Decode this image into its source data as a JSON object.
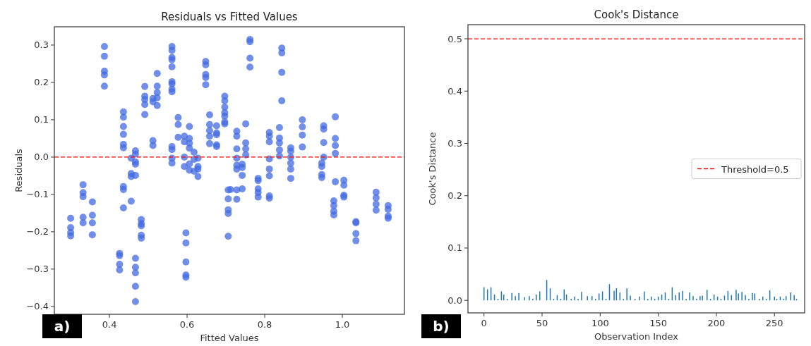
{
  "chart_data": [
    {
      "type": "scatter",
      "title": "Residuals vs Fitted Values",
      "xlabel": "Fitted Values",
      "ylabel": "Residuals",
      "marker": "circle",
      "annotations": [
        "a)"
      ],
      "xlim": [
        0.258,
        1.16
      ],
      "ylim": [
        -0.421,
        0.349
      ],
      "xticks": [
        0.4,
        0.6,
        0.8,
        {
          "value": 1,
          "label": "1.0"
        }
      ],
      "yticks": [
        {
          "value": -0.4,
          "label": "−0.4"
        },
        {
          "value": -0.3,
          "label": "−0.3"
        },
        {
          "value": -0.2,
          "label": "−0.2"
        },
        {
          "value": -0.1,
          "label": "−0.1"
        },
        {
          "value": 0,
          "label": "0.0"
        },
        0.1,
        0.2,
        0.3
      ],
      "ref_lines": [
        {
          "axis": "y",
          "value": 0,
          "color": "#ff0000",
          "line_style": "dashed"
        }
      ],
      "series": [
        {
          "color": "#4169e1",
          "x": [
            0.3,
            0.3,
            0.3,
            0.3,
            0.332,
            0.332,
            0.332,
            0.332,
            0.332,
            0.356,
            0.356,
            0.356,
            0.356,
            0.387,
            0.387,
            0.387,
            0.387,
            0.387,
            0.426,
            0.426,
            0.426,
            0.426,
            0.436,
            0.436,
            0.436,
            0.436,
            0.436,
            0.436,
            0.436,
            0.436,
            0.436,
            0.456,
            0.456,
            0.456,
            0.456,
            0.467,
            0.467,
            0.467,
            0.467,
            0.467,
            0.467,
            0.467,
            0.467,
            0.467,
            0.467,
            0.482,
            0.482,
            0.482,
            0.482,
            0.482,
            0.491,
            0.491,
            0.491,
            0.491,
            0.491,
            0.512,
            0.512,
            0.512,
            0.512,
            0.523,
            0.523,
            0.523,
            0.523,
            0.523,
            0.561,
            0.561,
            0.561,
            0.561,
            0.561,
            0.561,
            0.561,
            0.561,
            0.561,
            0.561,
            0.561,
            0.561,
            0.561,
            0.577,
            0.577,
            0.577,
            0.593,
            0.593,
            0.593,
            0.593,
            0.597,
            0.597,
            0.597,
            0.597,
            0.597,
            0.606,
            0.606,
            0.606,
            0.606,
            0.606,
            0.606,
            0.618,
            0.618,
            0.618,
            0.628,
            0.628,
            0.628,
            0.628,
            0.648,
            0.648,
            0.648,
            0.648,
            0.648,
            0.658,
            0.658,
            0.658,
            0.658,
            0.658,
            0.676,
            0.676,
            0.676,
            0.676,
            0.676,
            0.697,
            0.697,
            0.697,
            0.697,
            0.697,
            0.697,
            0.697,
            0.706,
            0.706,
            0.706,
            0.706,
            0.706,
            0.712,
            0.728,
            0.728,
            0.728,
            0.728,
            0.728,
            0.728,
            0.728,
            0.728,
            0.742,
            0.742,
            0.742,
            0.742,
            0.751,
            0.751,
            0.751,
            0.751,
            0.762,
            0.762,
            0.762,
            0.762,
            0.783,
            0.783,
            0.783,
            0.783,
            0.783,
            0.812,
            0.812,
            0.812,
            0.812,
            0.812,
            0.812,
            0.812,
            0.812,
            0.838,
            0.838,
            0.838,
            0.838,
            0.838,
            0.844,
            0.844,
            0.844,
            0.844,
            0.867,
            0.867,
            0.867,
            0.867,
            0.867,
            0.867,
            0.897,
            0.897,
            0.897,
            0.897,
            0.947,
            0.947,
            0.947,
            0.947,
            0.952,
            0.952,
            0.952,
            0.952,
            0.978,
            0.978,
            0.978,
            0.978,
            0.982,
            0.982,
            0.982,
            0.982,
            0.982,
            1.004,
            1.004,
            1.004,
            1.004,
            1.035,
            1.035,
            1.035,
            1.035,
            1.087,
            1.087,
            1.087,
            1.087,
            1.118,
            1.118,
            1.118,
            1.118
          ],
          "values": [
            -0.164,
            -0.189,
            -0.202,
            -0.211,
            -0.074,
            -0.095,
            -0.106,
            -0.161,
            -0.176,
            -0.12,
            -0.156,
            -0.176,
            -0.208,
            0.296,
            0.27,
            0.23,
            0.22,
            0.19,
            -0.258,
            -0.264,
            -0.287,
            -0.302,
            0.121,
            0.107,
            0.082,
            0.061,
            0.034,
            0.025,
            -0.079,
            -0.087,
            -0.136,
            -0.003,
            -0.044,
            -0.052,
            -0.118,
            0.017,
            0.008,
            -0.013,
            -0.019,
            -0.049,
            -0.271,
            -0.295,
            -0.31,
            -0.346,
            -0.387,
            -0.167,
            -0.178,
            -0.184,
            -0.209,
            -0.217,
            0.189,
            0.163,
            0.154,
            0.141,
            0.114,
            0.157,
            0.148,
            0.044,
            0.031,
            0.224,
            0.19,
            0.173,
            0.159,
            0.138,
            0.296,
            0.286,
            0.267,
            0.261,
            0.242,
            0.202,
            0.196,
            0.182,
            0.175,
            0.028,
            0.02,
            -0.003,
            -0.016,
            0.106,
            0.087,
            0.053,
            0.056,
            0.041,
            0.0,
            -0.025,
            -0.203,
            -0.23,
            -0.281,
            -0.316,
            -0.322,
            0.082,
            0.05,
            0.037,
            0.024,
            -0.018,
            -0.035,
            0.013,
            -0.006,
            -0.038,
            -0.003,
            -0.025,
            -0.032,
            -0.052,
            0.256,
            0.247,
            0.221,
            0.213,
            0.194,
            0.113,
            0.087,
            0.071,
            0.056,
            0.036,
            0.084,
            0.065,
            0.06,
            0.033,
            0.028,
            0.163,
            0.151,
            0.134,
            0.119,
            0.11,
            0.094,
            0.089,
            -0.088,
            -0.112,
            -0.141,
            -0.151,
            -0.212,
            -0.087,
            0.069,
            0.056,
            0.022,
            -0.003,
            -0.022,
            -0.032,
            -0.088,
            -0.113,
            -0.019,
            -0.028,
            -0.049,
            -0.085,
            0.089,
            0.038,
            0.022,
            0.006,
            0.315,
            0.309,
            0.265,
            0.241,
            -0.057,
            -0.063,
            -0.085,
            -0.095,
            -0.107,
            0.066,
            0.056,
            0.041,
            -0.005,
            -0.032,
            -0.05,
            -0.104,
            -0.11,
            0.079,
            0.051,
            0.038,
            0.019,
            0.003,
            0.292,
            0.279,
            0.227,
            0.151,
            0.025,
            0.016,
            0.0,
            -0.016,
            -0.032,
            -0.057,
            0.1,
            0.081,
            0.059,
            0.027,
            -0.016,
            -0.025,
            -0.047,
            -0.055,
            0.084,
            0.075,
            0.039,
            0.0,
            -0.117,
            -0.13,
            -0.145,
            -0.155,
            0.108,
            0.05,
            0.031,
            0.01,
            -0.066,
            -0.062,
            -0.075,
            -0.102,
            -0.107,
            -0.173,
            -0.176,
            -0.205,
            -0.224,
            -0.094,
            -0.109,
            -0.126,
            -0.142,
            -0.13,
            -0.14,
            -0.158,
            -0.164
          ]
        }
      ]
    },
    {
      "type": "bar",
      "title": "Cook's Distance",
      "xlabel": "Observation Index",
      "ylabel": "Cook's Distance",
      "legend": "right",
      "annotations": [
        "b)"
      ],
      "xlim": [
        -13.8,
        276
      ],
      "ylim": [
        -0.024,
        0.527
      ],
      "xticks": [
        0,
        50,
        100,
        150,
        200,
        250
      ],
      "yticks": [
        {
          "value": 0,
          "label": "0.0"
        },
        0.1,
        0.2,
        0.3,
        0.4,
        0.5
      ],
      "ref_lines": [
        {
          "axis": "y",
          "value": 0.5,
          "label": "Threshold=0.5",
          "color": "#ff0000",
          "line_style": "dashed"
        }
      ],
      "series": [
        {
          "color": "#1f77b4",
          "x": [
            0,
            3,
            6,
            9,
            12,
            15,
            17,
            20,
            24,
            27,
            30,
            35,
            39,
            42,
            45,
            48,
            54,
            57,
            60,
            63,
            66,
            69,
            71,
            75,
            78,
            81,
            84,
            89,
            93,
            96,
            99,
            102,
            105,
            108,
            112,
            114,
            117,
            120,
            123,
            126,
            130,
            134,
            138,
            141,
            144,
            147,
            150,
            153,
            156,
            159,
            162,
            165,
            168,
            171,
            174,
            177,
            180,
            183,
            186,
            188,
            192,
            195,
            198,
            201,
            204,
            207,
            210,
            213,
            217,
            219,
            222,
            225,
            228,
            231,
            233,
            237,
            240,
            243,
            246,
            250,
            252,
            255,
            258,
            260,
            264,
            267,
            269
          ],
          "values": [
            0.025,
            0.021,
            0.025,
            0.011,
            0.003,
            0.017,
            0.011,
            0.003,
            0.014,
            0.008,
            0.014,
            0.006,
            0.008,
            0.003,
            0.011,
            0.017,
            0.039,
            0.023,
            0.003,
            0.01,
            0.003,
            0.021,
            0.011,
            0.003,
            0.007,
            0.003,
            0.016,
            0.008,
            0.008,
            0.003,
            0.013,
            0.017,
            0.003,
            0.031,
            0.018,
            0.023,
            0.015,
            0.003,
            0.023,
            0.009,
            0.003,
            0.007,
            0.017,
            0.003,
            0.007,
            0.003,
            0.007,
            0.011,
            0.015,
            0.003,
            0.025,
            0.01,
            0.015,
            0.018,
            0.003,
            0.015,
            0.008,
            0.003,
            0.008,
            0.009,
            0.02,
            0.003,
            0.011,
            0.007,
            0.003,
            0.009,
            0.018,
            0.01,
            0.02,
            0.013,
            0.016,
            0.01,
            0.003,
            0.014,
            0.013,
            0.003,
            0.007,
            0.003,
            0.019,
            0.007,
            0.003,
            0.007,
            0.003,
            0.008,
            0.015,
            0.01,
            0.003
          ]
        }
      ]
    }
  ]
}
